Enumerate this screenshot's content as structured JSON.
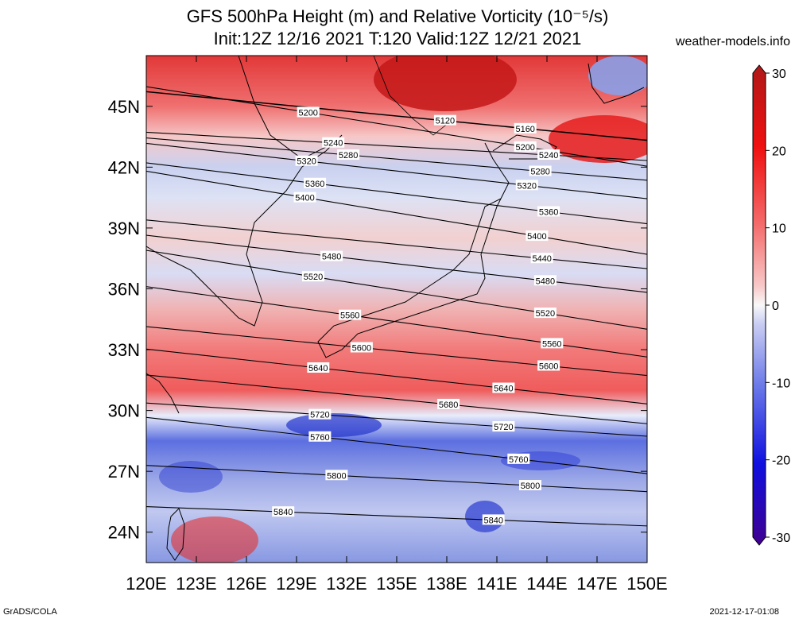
{
  "header": {
    "title_line1": "GFS 500hPa Height (m) and Relative Vorticity (10⁻⁵/s)",
    "title_line2": "Init:12Z 12/16 2021 T:120 Valid:12Z 12/21 2021",
    "site": "weather-models.info"
  },
  "footer": {
    "left": "GrADS/COLA",
    "right": "2021-12-17-01:08"
  },
  "map": {
    "lon_range": [
      120,
      150
    ],
    "lat_range": [
      22.5,
      47.5
    ],
    "lon_ticks": [
      "120E",
      "123E",
      "126E",
      "129E",
      "132E",
      "135E",
      "138E",
      "141E",
      "144E",
      "147E",
      "150E"
    ],
    "lat_ticks": [
      "24N",
      "27N",
      "30N",
      "33N",
      "36N",
      "39N",
      "42N",
      "45N"
    ],
    "colors": {
      "strong_positive": "#cc1010",
      "positive": "#f55a5a",
      "weak_positive": "#f7b5b5",
      "neutral": "#f4f4f8",
      "weak_negative": "#b7c3ee",
      "negative": "#4a5fe0",
      "strong_negative": "#1818c0"
    }
  },
  "contours": [
    {
      "value": "5120",
      "label_lon": 137.9,
      "label_lat": 44.3
    },
    {
      "value": "5160",
      "label_lon": 142.7,
      "label_lat": 43.9
    },
    {
      "value": "5200",
      "label_lon": 129.7,
      "label_lat": 44.7
    },
    {
      "value": "5200",
      "label_lon": 142.7,
      "label_lat": 43.0
    },
    {
      "value": "5240",
      "label_lon": 131.2,
      "label_lat": 43.2
    },
    {
      "value": "5240",
      "label_lon": 144.1,
      "label_lat": 42.6
    },
    {
      "value": "5280",
      "label_lon": 132.1,
      "label_lat": 42.6
    },
    {
      "value": "5280",
      "label_lon": 143.6,
      "label_lat": 41.8
    },
    {
      "value": "5320",
      "label_lon": 129.6,
      "label_lat": 42.3
    },
    {
      "value": "5320",
      "label_lon": 142.8,
      "label_lat": 41.1
    },
    {
      "value": "5360",
      "label_lon": 130.1,
      "label_lat": 41.2
    },
    {
      "value": "5360",
      "label_lon": 144.1,
      "label_lat": 39.8
    },
    {
      "value": "5400",
      "label_lon": 129.5,
      "label_lat": 40.5
    },
    {
      "value": "5400",
      "label_lon": 143.4,
      "label_lat": 38.6
    },
    {
      "value": "5440",
      "label_lon": 143.7,
      "label_lat": 37.5
    },
    {
      "value": "5480",
      "label_lon": 131.1,
      "label_lat": 37.6
    },
    {
      "value": "5480",
      "label_lon": 143.9,
      "label_lat": 36.4
    },
    {
      "value": "5520",
      "label_lon": 130.0,
      "label_lat": 36.6
    },
    {
      "value": "5520",
      "label_lon": 143.9,
      "label_lat": 34.8
    },
    {
      "value": "5560",
      "label_lon": 132.2,
      "label_lat": 34.7
    },
    {
      "value": "5560",
      "label_lon": 144.3,
      "label_lat": 33.3
    },
    {
      "value": "5600",
      "label_lon": 132.9,
      "label_lat": 33.1
    },
    {
      "value": "5600",
      "label_lon": 144.1,
      "label_lat": 32.2
    },
    {
      "value": "5640",
      "label_lon": 130.3,
      "label_lat": 32.1
    },
    {
      "value": "5640",
      "label_lon": 141.4,
      "label_lat": 31.1
    },
    {
      "value": "5680",
      "label_lon": 138.1,
      "label_lat": 30.3
    },
    {
      "value": "5720",
      "label_lon": 130.4,
      "label_lat": 29.8
    },
    {
      "value": "5720",
      "label_lon": 141.4,
      "label_lat": 29.2
    },
    {
      "value": "5760",
      "label_lon": 130.4,
      "label_lat": 28.7
    },
    {
      "value": "5760",
      "label_lon": 142.3,
      "label_lat": 27.6
    },
    {
      "value": "5800",
      "label_lon": 131.4,
      "label_lat": 26.8
    },
    {
      "value": "5800",
      "label_lon": 143.0,
      "label_lat": 26.3
    },
    {
      "value": "5840",
      "label_lon": 128.2,
      "label_lat": 25.0
    },
    {
      "value": "5840",
      "label_lon": 140.8,
      "label_lat": 24.6
    }
  ],
  "colorbar": {
    "min": -30,
    "max": 30,
    "tick_labels": [
      "30",
      "20",
      "10",
      "0",
      "-10",
      "-20",
      "-30"
    ],
    "tick_values": [
      30,
      20,
      10,
      0,
      -10,
      -20,
      -30
    ]
  }
}
